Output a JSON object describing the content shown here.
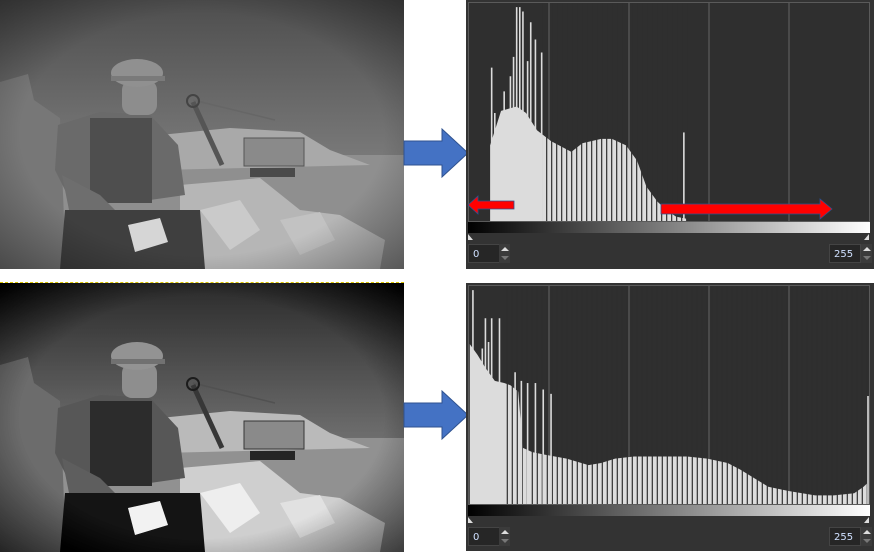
{
  "top": {
    "histogram": {
      "colors": {
        "fill": "#dcdcdc",
        "background": "#2f2f2f"
      },
      "fill_points": [
        [
          13,
          0.35
        ],
        [
          20,
          0.51
        ],
        [
          30,
          0.53
        ],
        [
          36,
          0.5
        ],
        [
          43,
          0.42
        ],
        [
          52,
          0.37
        ],
        [
          65,
          0.32
        ],
        [
          72,
          0.36
        ],
        [
          84,
          0.38
        ],
        [
          91,
          0.38
        ],
        [
          100,
          0.35
        ],
        [
          107,
          0.28
        ],
        [
          113,
          0.16
        ],
        [
          120,
          0.09
        ],
        [
          126,
          0.05
        ],
        [
          132,
          0.02
        ],
        [
          139,
          0.01
        ]
      ],
      "spikes": [
        [
          14,
          0.71
        ],
        [
          16,
          0.5
        ],
        [
          19,
          0.45
        ],
        [
          22,
          0.6
        ],
        [
          26,
          0.67
        ],
        [
          28,
          0.76
        ],
        [
          30,
          0.99
        ],
        [
          32,
          0.99
        ],
        [
          34,
          0.97
        ],
        [
          37,
          0.74
        ],
        [
          39,
          0.92
        ],
        [
          42,
          0.84
        ],
        [
          46,
          0.78
        ],
        [
          137,
          0.41
        ]
      ],
      "gap_from_bin": 46,
      "gap_to_bin": 140,
      "min_input": "0",
      "max_input": "255"
    },
    "annotations": {
      "left_arrow": "shadows-clipped-indicator",
      "right_arrow": "highlights-empty-range",
      "color": "#ff0000"
    }
  },
  "bottom": {
    "histogram": {
      "colors": {
        "fill": "#dcdcdc",
        "background": "#2f2f2f"
      },
      "fill_points": [
        [
          0,
          0.74
        ],
        [
          5,
          0.69
        ],
        [
          10,
          0.63
        ],
        [
          16,
          0.57
        ],
        [
          22,
          0.56
        ],
        [
          26,
          0.55
        ],
        [
          31,
          0.52
        ],
        [
          34,
          0.26
        ],
        [
          40,
          0.24
        ],
        [
          47,
          0.23
        ],
        [
          62,
          0.21
        ],
        [
          76,
          0.18
        ],
        [
          84,
          0.19
        ],
        [
          93,
          0.21
        ],
        [
          105,
          0.22
        ],
        [
          126,
          0.22
        ],
        [
          139,
          0.22
        ],
        [
          152,
          0.21
        ],
        [
          165,
          0.19
        ],
        [
          173,
          0.16
        ],
        [
          182,
          0.12
        ],
        [
          191,
          0.08
        ],
        [
          204,
          0.06
        ],
        [
          221,
          0.04
        ],
        [
          233,
          0.04
        ],
        [
          246,
          0.05
        ],
        [
          252,
          0.08
        ],
        [
          255,
          0.1
        ]
      ],
      "spikes": [
        [
          2,
          0.99
        ],
        [
          8,
          0.72
        ],
        [
          10,
          0.86
        ],
        [
          12,
          0.75
        ],
        [
          14,
          0.86
        ],
        [
          19,
          0.86
        ],
        [
          29,
          0.61
        ],
        [
          33,
          0.57
        ],
        [
          37,
          0.56
        ],
        [
          42,
          0.56
        ],
        [
          47,
          0.53
        ],
        [
          52,
          0.51
        ],
        [
          255,
          0.5
        ]
      ],
      "gap_from_bin": 24,
      "gap_to_bin": 255,
      "min_input": "0",
      "max_input": "255"
    }
  },
  "arrow_color": "#4472c4"
}
